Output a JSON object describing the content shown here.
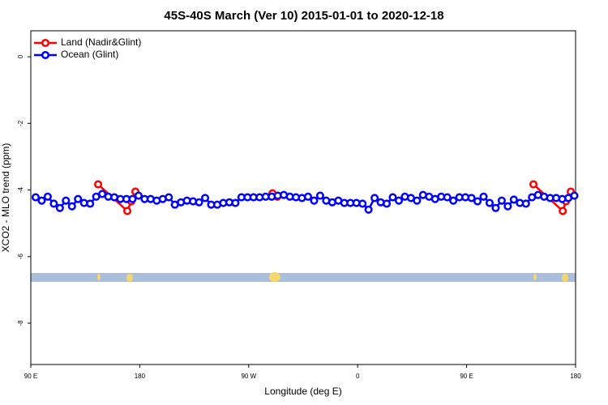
{
  "chart_data": {
    "type": "line",
    "title": "45S-40S March (Ver 10)   2015-01-01 to 2020-12-18",
    "x_label": "Longitude (deg E)",
    "y_label": "XCO2 - MLO trend (ppm)",
    "xlim": [
      90,
      540
    ],
    "xticks": [
      {
        "value": 90,
        "label": "90 E"
      },
      180,
      {
        "value": 270,
        "label": "90 W"
      },
      {
        "value": 360,
        "label": "0"
      },
      {
        "value": 450,
        "label": "90 E"
      },
      {
        "value": 540,
        "label": "180"
      }
    ],
    "ylim": [
      -9.24,
      0.78
    ],
    "yticks": [
      0,
      -2,
      -4,
      -6,
      -8
    ],
    "legend": "top-left",
    "series": [
      {
        "name": "Land (Nadir&Glint)",
        "color": "#ff0000",
        "x": [
          145.6,
          169.7,
          173,
          176.4,
          null,
          289.6,
          293.6,
          null,
          505.2,
          529.4,
          532,
          536
        ],
        "values": [
          -3.83,
          -4.63,
          -4.34,
          -4.05,
          null,
          -4.1,
          -4.2,
          null,
          -3.83,
          -4.63,
          -4.34,
          -4.05
        ]
      },
      {
        "name": "Ocean (Glint)",
        "color": "#0000ff",
        "x": [
          94,
          99,
          104,
          109,
          114,
          119,
          124,
          129,
          134,
          139,
          144,
          149,
          154,
          159,
          164,
          169,
          174,
          179,
          184,
          189,
          194,
          199,
          204,
          209,
          214,
          219,
          224,
          229,
          234,
          239,
          244,
          249,
          254,
          259,
          264,
          269,
          274,
          279,
          284,
          289,
          294,
          299,
          304,
          309,
          314,
          319,
          324,
          329,
          334,
          339,
          344,
          349,
          354,
          359,
          364,
          369,
          374,
          379,
          384,
          389,
          394,
          399,
          404,
          409,
          414,
          419,
          424,
          429,
          434,
          439,
          444,
          449,
          454,
          459,
          464,
          469,
          474,
          479,
          484,
          489,
          494,
          499,
          504,
          509,
          514,
          519,
          524,
          529,
          534,
          539
        ],
        "values": [
          -4.22,
          -4.32,
          -4.2,
          -4.41,
          -4.54,
          -4.32,
          -4.49,
          -4.27,
          -4.39,
          -4.41,
          -4.2,
          -4.12,
          -4.2,
          -4.22,
          -4.27,
          -4.27,
          -4.27,
          -4.17,
          -4.27,
          -4.27,
          -4.32,
          -4.27,
          -4.22,
          -4.44,
          -4.37,
          -4.32,
          -4.34,
          -4.37,
          -4.24,
          -4.44,
          -4.44,
          -4.39,
          -4.37,
          -4.39,
          -4.22,
          -4.22,
          -4.22,
          -4.22,
          -4.2,
          -4.2,
          -4.17,
          -4.15,
          -4.2,
          -4.22,
          -4.24,
          -4.2,
          -4.32,
          -4.17,
          -4.32,
          -4.37,
          -4.32,
          -4.39,
          -4.39,
          -4.39,
          -4.41,
          -4.59,
          -4.24,
          -4.37,
          -4.41,
          -4.22,
          -4.32,
          -4.2,
          -4.24,
          -4.32,
          -4.15,
          -4.2,
          -4.27,
          -4.2,
          -4.22,
          -4.32,
          -4.22,
          -4.22,
          -4.24,
          -4.34,
          -4.2,
          -4.39,
          -4.54,
          -4.32,
          -4.49,
          -4.29,
          -4.39,
          -4.41,
          -4.22,
          -4.15,
          -4.2,
          -4.24,
          -4.24,
          -4.27,
          -4.24,
          -4.17
        ]
      }
    ]
  }
}
